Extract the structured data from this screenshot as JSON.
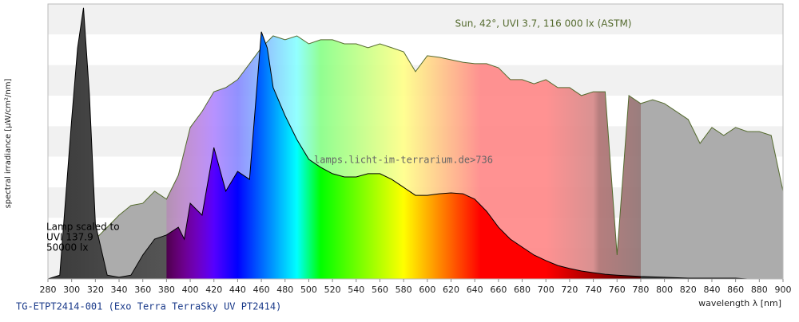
{
  "chart_data": {
    "type": "spectrum",
    "title": "TG-ETPT2414-001 (Exo Terra TerraSky UV PT2414)",
    "x_label": "wavelength λ [nm]",
    "y_label": "spectral irradiance [µW/cm²/nm]",
    "annotations": [
      "Sun, 42°, UVI 3.7, 116 000 lx (ASTM)",
      "lamps.licht-im-terrarium.de>736",
      "Lamp scaled to",
      "UVI 137.9",
      "50000 lx"
    ],
    "xlim": [
      280,
      900
    ],
    "xticks": [
      280,
      300,
      320,
      340,
      360,
      380,
      400,
      420,
      440,
      460,
      480,
      500,
      520,
      540,
      560,
      580,
      600,
      620,
      640,
      660,
      680,
      700,
      720,
      740,
      760,
      780,
      800,
      820,
      840,
      860,
      880,
      900
    ],
    "ylim": [
      0,
      100
    ],
    "grid": true,
    "visible_range": [
      380,
      780
    ],
    "series": [
      {
        "x": [
          300,
          310,
          320,
          330,
          340,
          350,
          360,
          370,
          380,
          390,
          400,
          410,
          420,
          430,
          440,
          450,
          460,
          470,
          480,
          490,
          500,
          510,
          520,
          530,
          540,
          550,
          560,
          570,
          580,
          590,
          600,
          610,
          620,
          630,
          640,
          650,
          660,
          670,
          680,
          690,
          700,
          710,
          720,
          730,
          740,
          750,
          760,
          770,
          780,
          790,
          800,
          810,
          820,
          830,
          840,
          850,
          860,
          870,
          880,
          890,
          900
        ],
        "values": [
          0,
          5.8,
          14.5,
          18.8,
          23.2,
          26.7,
          27.5,
          31.9,
          29,
          37.7,
          55.1,
          60.9,
          68.1,
          69.6,
          72.5,
          78.3,
          84.1,
          88.4,
          87,
          88.4,
          85.5,
          87,
          87,
          85.5,
          85.5,
          84.1,
          85.5,
          84.1,
          82.6,
          75.4,
          81.2,
          80.6,
          79.7,
          78.8,
          78.3,
          78.3,
          76.8,
          72.5,
          72.5,
          71,
          72.5,
          69.6,
          69.6,
          66.7,
          68.1,
          68.1,
          8.7,
          66.7,
          63.8,
          65.2,
          63.8,
          60.9,
          58,
          49.3,
          55.1,
          52.2,
          55.1,
          53.6,
          53.6,
          52.2,
          31.9
        ],
        "color": "#556b2f"
      },
      {
        "x": [
          280,
          290,
          300,
          305,
          310,
          315,
          320,
          330,
          340,
          350,
          360,
          370,
          380,
          390,
          395,
          400,
          410,
          420,
          430,
          440,
          450,
          460,
          465,
          470,
          480,
          490,
          500,
          510,
          520,
          530,
          540,
          550,
          560,
          570,
          580,
          590,
          600,
          610,
          620,
          630,
          640,
          650,
          660,
          670,
          680,
          690,
          700,
          710,
          720,
          730,
          740,
          750,
          760,
          780,
          800,
          820,
          840,
          860,
          870,
          900
        ],
        "values": [
          0,
          1.4,
          58,
          84,
          98.6,
          67,
          20,
          1.4,
          0.6,
          1.4,
          8.7,
          14.5,
          16,
          18.8,
          14.5,
          27.5,
          23.2,
          47.8,
          31.9,
          39.1,
          36.2,
          89.9,
          84,
          69.6,
          59.4,
          50.7,
          43.5,
          40.6,
          38.3,
          37.1,
          37.1,
          38.3,
          38.3,
          36.2,
          33.3,
          30.4,
          30.4,
          31,
          31.3,
          31,
          29,
          24.6,
          18.8,
          14.5,
          11.6,
          8.7,
          6.7,
          4.9,
          3.8,
          2.9,
          2.3,
          1.7,
          1.4,
          0.9,
          0.6,
          0.3,
          0.3,
          0.3,
          0,
          0
        ],
        "color": "#000000"
      }
    ]
  }
}
